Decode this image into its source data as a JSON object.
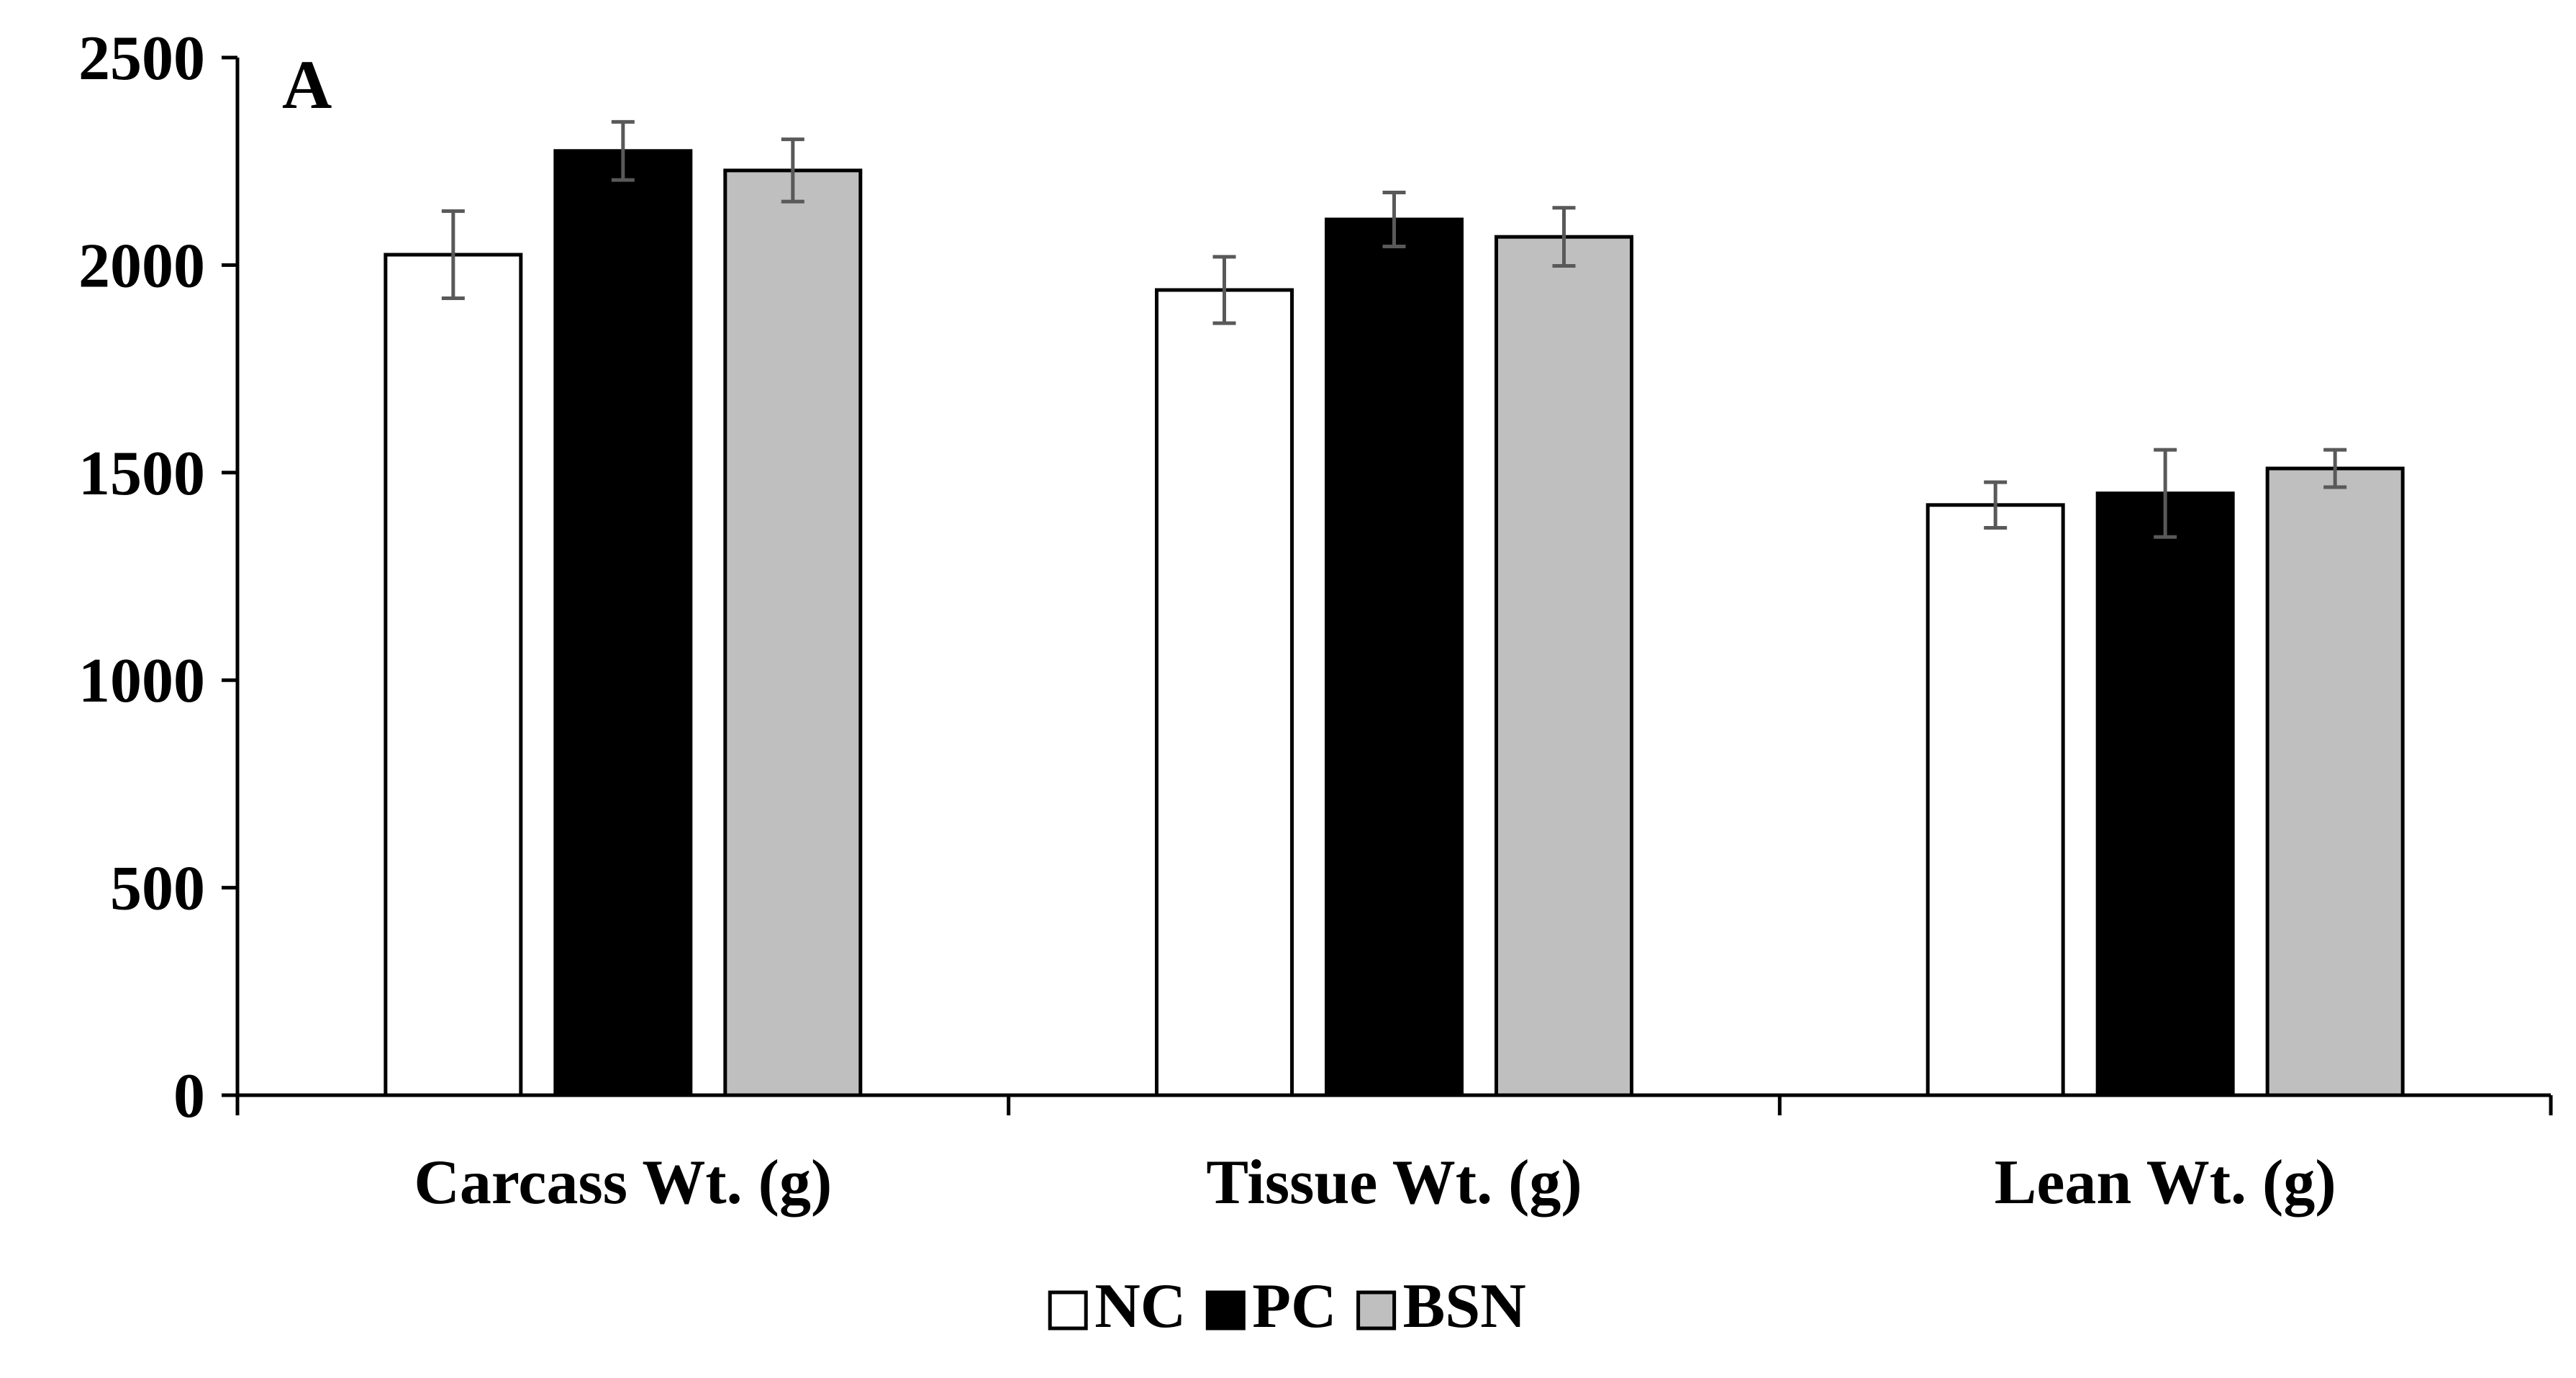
{
  "chart_data": {
    "type": "bar",
    "panel_label": "A",
    "title": "",
    "xlabel": "",
    "ylabel": "",
    "categories": [
      "Carcass Wt. (g)",
      "Tissue Wt. (g)",
      "Lean Wt. (g)"
    ],
    "series": [
      {
        "name": "NC",
        "color": "#ffffff",
        "values": [
          2025,
          1940,
          1422
        ],
        "errors": [
          105,
          80,
          55
        ]
      },
      {
        "name": "PC",
        "color": "#000000",
        "values": [
          2275,
          2110,
          1450
        ],
        "errors": [
          70,
          65,
          105
        ]
      },
      {
        "name": "BSN",
        "color": "#bfbfbf",
        "values": [
          2228,
          2068,
          1510
        ],
        "errors": [
          75,
          70,
          45
        ]
      }
    ],
    "ylim": [
      0,
      2500
    ],
    "yticks": [
      0,
      500,
      1000,
      1500,
      2000,
      2500
    ],
    "grid": false,
    "legend_position": "bottom-center",
    "error_bar_color": "#595959"
  }
}
